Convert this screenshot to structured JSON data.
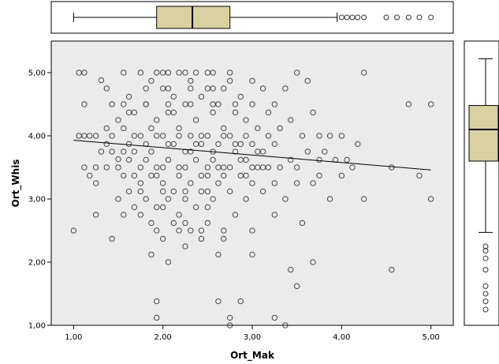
{
  "chart_data": {
    "type": "scatter",
    "title": "",
    "xlabel": "Ort_Mak",
    "ylabel": "Ort_Whis",
    "xlim": [
      0.75,
      5.25
    ],
    "ylim": [
      1.0,
      5.5
    ],
    "xticks": [
      1,
      2,
      3,
      4,
      5
    ],
    "yticks": [
      1,
      2,
      3,
      4,
      5
    ],
    "xtick_labels": [
      "1,00",
      "2,00",
      "3,00",
      "4,00",
      "5,00"
    ],
    "ytick_labels": [
      "1,00",
      "2,00",
      "3,00",
      "4,00",
      "5,00"
    ],
    "grid": false,
    "background_color": "#ebebeb",
    "marker_color": "#333333",
    "fit_line": {
      "x": [
        1.0,
        5.0
      ],
      "y": [
        3.93,
        3.46
      ]
    },
    "marginal_boxplot_x": {
      "whisker_low": 1.0,
      "q1": 1.93,
      "median": 2.33,
      "q3": 2.75,
      "whisker_high": 3.95,
      "outliers": [
        4.0,
        4.06,
        4.12,
        4.18,
        4.25,
        4.5,
        4.62,
        4.75,
        4.87,
        5.0
      ],
      "box_color": "#d8d2a0"
    },
    "marginal_boxplot_y": {
      "whisker_low": 2.47,
      "q1": 3.6,
      "median": 4.1,
      "q3": 4.48,
      "whisker_high": 5.22,
      "outliers": [
        1.25,
        1.38,
        1.5,
        1.62,
        1.88,
        2.06,
        2.18,
        2.25
      ],
      "box_color": "#d8d2a0"
    },
    "points": [
      [
        1.0,
        2.5
      ],
      [
        1.06,
        5.0
      ],
      [
        1.12,
        5.0
      ],
      [
        1.06,
        4.0
      ],
      [
        1.12,
        3.5
      ],
      [
        1.18,
        3.37
      ],
      [
        1.18,
        4.0
      ],
      [
        1.25,
        4.0
      ],
      [
        1.25,
        3.25
      ],
      [
        1.25,
        2.75
      ],
      [
        1.31,
        4.88
      ],
      [
        1.37,
        4.75
      ],
      [
        1.37,
        3.5
      ],
      [
        1.43,
        4.5
      ],
      [
        1.43,
        3.75
      ],
      [
        1.43,
        2.37
      ],
      [
        1.5,
        4.25
      ],
      [
        1.5,
        3.63
      ],
      [
        1.5,
        3.0
      ],
      [
        1.56,
        5.0
      ],
      [
        1.56,
        4.12
      ],
      [
        1.56,
        3.37
      ],
      [
        1.56,
        2.75
      ],
      [
        1.62,
        4.62
      ],
      [
        1.62,
        3.87
      ],
      [
        1.62,
        3.12
      ],
      [
        1.68,
        4.37
      ],
      [
        1.68,
        3.75
      ],
      [
        1.68,
        2.87
      ],
      [
        1.75,
        5.0
      ],
      [
        1.75,
        4.0
      ],
      [
        1.75,
        3.25
      ],
      [
        1.75,
        2.75
      ],
      [
        1.81,
        4.5
      ],
      [
        1.81,
        3.62
      ],
      [
        1.81,
        3.0
      ],
      [
        1.87,
        4.87
      ],
      [
        1.87,
        4.12
      ],
      [
        1.87,
        3.37
      ],
      [
        1.87,
        2.62
      ],
      [
        1.93,
        5.0
      ],
      [
        1.93,
        4.25
      ],
      [
        1.93,
        3.5
      ],
      [
        1.93,
        2.87
      ],
      [
        1.93,
        1.38
      ],
      [
        1.93,
        1.12
      ],
      [
        2.0,
        4.75
      ],
      [
        2.0,
        4.0
      ],
      [
        2.0,
        3.25
      ],
      [
        2.0,
        2.37
      ],
      [
        2.06,
        5.0
      ],
      [
        2.06,
        4.37
      ],
      [
        2.06,
        3.62
      ],
      [
        2.06,
        3.0
      ],
      [
        2.06,
        2.0
      ],
      [
        2.12,
        4.62
      ],
      [
        2.12,
        3.87
      ],
      [
        2.12,
        3.12
      ],
      [
        2.12,
        2.62
      ],
      [
        2.18,
        5.0
      ],
      [
        2.18,
        4.12
      ],
      [
        2.18,
        3.5
      ],
      [
        2.18,
        2.75
      ],
      [
        2.25,
        4.5
      ],
      [
        2.25,
        3.75
      ],
      [
        2.25,
        3.0
      ],
      [
        2.25,
        2.25
      ],
      [
        2.31,
        4.87
      ],
      [
        2.31,
        4.0
      ],
      [
        2.31,
        3.25
      ],
      [
        2.31,
        2.5
      ],
      [
        2.37,
        5.0
      ],
      [
        2.37,
        4.25
      ],
      [
        2.37,
        3.62
      ],
      [
        2.37,
        2.87
      ],
      [
        2.43,
        4.62
      ],
      [
        2.43,
        3.87
      ],
      [
        2.43,
        3.12
      ],
      [
        2.43,
        2.37
      ],
      [
        2.5,
        4.75
      ],
      [
        2.5,
        4.0
      ],
      [
        2.5,
        3.37
      ],
      [
        2.5,
        2.62
      ],
      [
        2.56,
        5.0
      ],
      [
        2.56,
        4.37
      ],
      [
        2.56,
        3.75
      ],
      [
        2.56,
        3.0
      ],
      [
        2.62,
        4.5
      ],
      [
        2.62,
        3.87
      ],
      [
        2.62,
        3.25
      ],
      [
        2.62,
        1.38
      ],
      [
        2.68,
        4.75
      ],
      [
        2.68,
        4.12
      ],
      [
        2.68,
        3.5
      ],
      [
        2.68,
        2.37
      ],
      [
        2.75,
        5.0
      ],
      [
        2.75,
        4.0
      ],
      [
        2.75,
        3.12
      ],
      [
        2.75,
        1.12
      ],
      [
        2.75,
        1.0
      ],
      [
        2.81,
        4.37
      ],
      [
        2.81,
        3.75
      ],
      [
        2.81,
        2.75
      ],
      [
        2.87,
        4.62
      ],
      [
        2.87,
        3.87
      ],
      [
        2.87,
        3.37
      ],
      [
        2.87,
        1.38
      ],
      [
        2.93,
        4.25
      ],
      [
        2.93,
        3.62
      ],
      [
        2.93,
        3.0
      ],
      [
        3.0,
        4.5
      ],
      [
        3.0,
        3.87
      ],
      [
        3.0,
        3.25
      ],
      [
        3.0,
        2.5
      ],
      [
        3.06,
        4.12
      ],
      [
        3.06,
        3.5
      ],
      [
        3.12,
        4.75
      ],
      [
        3.12,
        3.75
      ],
      [
        3.12,
        3.12
      ],
      [
        3.18,
        4.37
      ],
      [
        3.18,
        3.5
      ],
      [
        3.25,
        4.5
      ],
      [
        3.25,
        3.87
      ],
      [
        3.25,
        2.75
      ],
      [
        3.25,
        1.12
      ],
      [
        3.31,
        4.12
      ],
      [
        3.31,
        3.5
      ],
      [
        3.37,
        4.75
      ],
      [
        3.37,
        3.0
      ],
      [
        3.37,
        1.0
      ],
      [
        3.43,
        4.25
      ],
      [
        3.43,
        3.62
      ],
      [
        3.43,
        1.88
      ],
      [
        3.5,
        5.0
      ],
      [
        3.5,
        3.5
      ],
      [
        3.5,
        1.62
      ],
      [
        3.56,
        4.0
      ],
      [
        3.56,
        2.62
      ],
      [
        3.62,
        4.87
      ],
      [
        3.62,
        3.75
      ],
      [
        3.68,
        4.37
      ],
      [
        3.68,
        3.25
      ],
      [
        3.68,
        2.0
      ],
      [
        3.75,
        4.0
      ],
      [
        3.75,
        3.37
      ],
      [
        3.81,
        3.75
      ],
      [
        3.87,
        4.0
      ],
      [
        3.87,
        3.0
      ],
      [
        3.93,
        3.62
      ],
      [
        4.0,
        4.0
      ],
      [
        4.06,
        3.62
      ],
      [
        4.12,
        3.5
      ],
      [
        4.18,
        3.87
      ],
      [
        4.25,
        5.0
      ],
      [
        4.25,
        3.0
      ],
      [
        4.56,
        3.5
      ],
      [
        4.56,
        1.88
      ],
      [
        4.75,
        4.5
      ],
      [
        4.87,
        3.37
      ],
      [
        5.0,
        4.5
      ],
      [
        5.0,
        3.0
      ],
      [
        1.12,
        4.5
      ],
      [
        1.37,
        4.12
      ],
      [
        1.62,
        4.37
      ],
      [
        1.87,
        3.75
      ],
      [
        2.12,
        4.37
      ],
      [
        2.37,
        3.87
      ],
      [
        2.62,
        3.5
      ],
      [
        2.87,
        3.62
      ],
      [
        3.12,
        3.5
      ],
      [
        1.25,
        3.5
      ],
      [
        1.5,
        3.5
      ],
      [
        1.75,
        3.5
      ],
      [
        2.0,
        3.5
      ],
      [
        2.25,
        3.5
      ],
      [
        2.5,
        3.5
      ],
      [
        2.75,
        3.5
      ],
      [
        3.0,
        3.5
      ],
      [
        1.31,
        3.75
      ],
      [
        1.56,
        3.75
      ],
      [
        1.81,
        3.87
      ],
      [
        2.06,
        3.87
      ],
      [
        2.31,
        3.75
      ],
      [
        2.56,
        3.62
      ],
      [
        2.81,
        3.87
      ],
      [
        3.06,
        3.75
      ],
      [
        1.43,
        4.0
      ],
      [
        1.68,
        4.0
      ],
      [
        1.93,
        4.0
      ],
      [
        2.18,
        4.0
      ],
      [
        2.43,
        4.0
      ],
      [
        2.68,
        4.0
      ],
      [
        2.93,
        4.0
      ],
      [
        3.18,
        4.0
      ],
      [
        1.56,
        4.5
      ],
      [
        1.81,
        4.5
      ],
      [
        2.06,
        4.5
      ],
      [
        2.31,
        4.5
      ],
      [
        2.56,
        4.5
      ],
      [
        2.81,
        4.5
      ],
      [
        1.68,
        3.37
      ],
      [
        1.93,
        3.37
      ],
      [
        2.18,
        3.37
      ],
      [
        2.43,
        3.37
      ],
      [
        2.68,
        3.37
      ],
      [
        2.93,
        3.37
      ],
      [
        1.75,
        3.12
      ],
      [
        2.0,
        3.12
      ],
      [
        2.25,
        3.12
      ],
      [
        2.5,
        3.12
      ],
      [
        1.81,
        4.75
      ],
      [
        2.06,
        4.75
      ],
      [
        2.31,
        4.75
      ],
      [
        2.56,
        4.75
      ],
      [
        1.93,
        2.5
      ],
      [
        2.18,
        2.5
      ],
      [
        2.43,
        2.5
      ],
      [
        2.68,
        2.5
      ],
      [
        2.0,
        5.0
      ],
      [
        2.25,
        5.0
      ],
      [
        2.5,
        5.0
      ],
      [
        2.75,
        4.87
      ],
      [
        3.0,
        4.87
      ],
      [
        1.12,
        4.0
      ],
      [
        1.37,
        3.87
      ],
      [
        1.62,
        3.62
      ],
      [
        2.0,
        2.87
      ],
      [
        2.25,
        2.62
      ],
      [
        2.5,
        2.87
      ],
      [
        3.25,
        3.25
      ],
      [
        3.5,
        3.25
      ],
      [
        3.75,
        3.62
      ],
      [
        4.0,
        3.37
      ],
      [
        1.87,
        2.12
      ],
      [
        2.62,
        2.12
      ],
      [
        3.0,
        2.12
      ]
    ]
  }
}
